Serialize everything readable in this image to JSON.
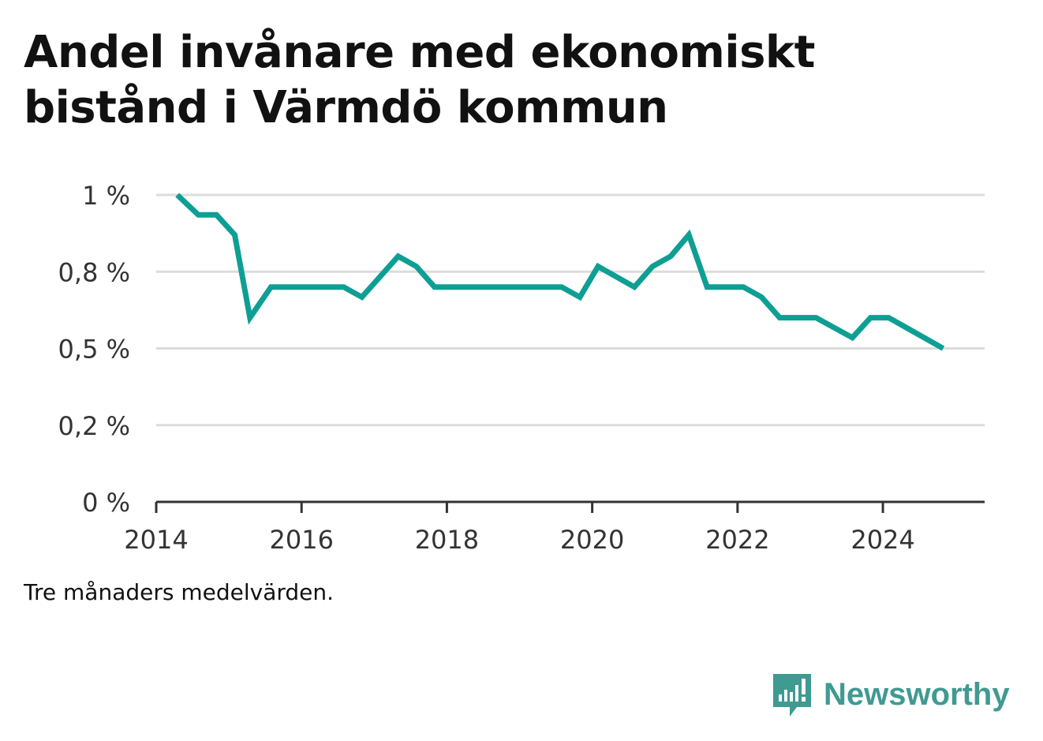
{
  "title": "Andel invånare med ekonomiskt bistånd i Värmdö kommun",
  "note": "Tre månaders medelvärden.",
  "brand": {
    "name": "Newsworthy",
    "icon": "chart-bubble-icon",
    "color": "#3f9a92"
  },
  "chart_data": {
    "type": "line",
    "title": "Andel invånare med ekonomiskt bistånd i Värmdö kommun",
    "xlabel": "",
    "ylabel": "",
    "xlim": [
      2014.0,
      2025.4
    ],
    "ylim": [
      0,
      1.0
    ],
    "x_ticks": [
      2014,
      2016,
      2018,
      2020,
      2022,
      2024
    ],
    "y_ticks": [
      {
        "value": 0,
        "label": "0 %"
      },
      {
        "value": 0.25,
        "label": "0,2 %"
      },
      {
        "value": 0.5,
        "label": "0,5 %"
      },
      {
        "value": 0.75,
        "label": "0,8 %"
      },
      {
        "value": 1.0,
        "label": "1 %"
      }
    ],
    "grid": true,
    "line_color": "#0e9f94",
    "series": [
      {
        "values": [
          [
            2014.29,
            1.0
          ],
          [
            2014.58,
            0.935
          ],
          [
            2014.83,
            0.935
          ],
          [
            2015.08,
            0.87
          ],
          [
            2015.29,
            0.6
          ],
          [
            2015.58,
            0.7
          ],
          [
            2016.58,
            0.7
          ],
          [
            2016.83,
            0.667
          ],
          [
            2017.33,
            0.8
          ],
          [
            2017.58,
            0.767
          ],
          [
            2017.83,
            0.7
          ],
          [
            2019.58,
            0.7
          ],
          [
            2019.83,
            0.667
          ],
          [
            2020.08,
            0.767
          ],
          [
            2020.58,
            0.7
          ],
          [
            2020.83,
            0.767
          ],
          [
            2021.08,
            0.8
          ],
          [
            2021.33,
            0.87
          ],
          [
            2021.58,
            0.7
          ],
          [
            2022.08,
            0.7
          ],
          [
            2022.33,
            0.667
          ],
          [
            2022.58,
            0.6
          ],
          [
            2023.08,
            0.6
          ],
          [
            2023.58,
            0.535
          ],
          [
            2023.83,
            0.6
          ],
          [
            2024.08,
            0.6
          ],
          [
            2024.83,
            0.5
          ]
        ]
      }
    ]
  }
}
